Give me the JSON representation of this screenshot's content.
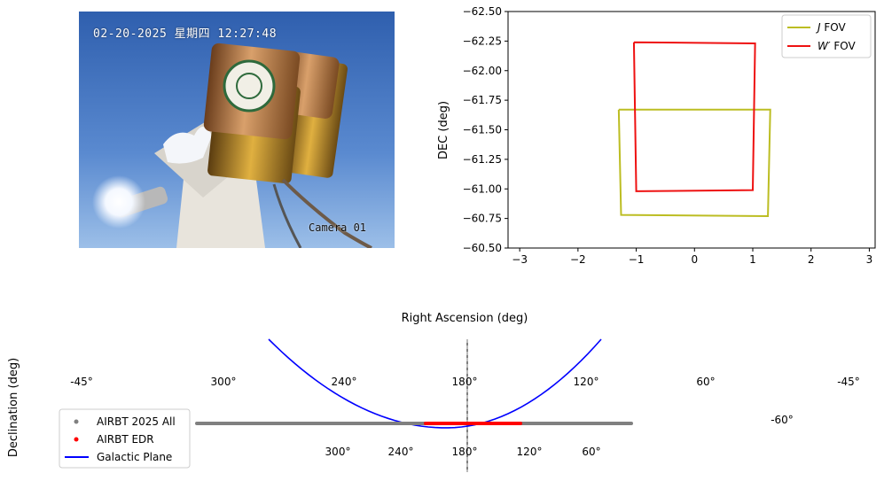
{
  "photo": {
    "timestamp": "02-20-2025 星期四 12:27:48",
    "camera_label": "Camera 01"
  },
  "chart_data": [
    {
      "type": "line",
      "ylabel": "DEC (deg)",
      "xlim": [
        -3.2,
        3.1
      ],
      "ylim": [
        -62.5,
        -60.5
      ],
      "y_inverted": true,
      "xticks": [
        -3,
        -2,
        -1,
        0,
        1,
        2,
        3
      ],
      "xtick_labels": [
        "−3",
        "−2",
        "−1",
        "0",
        "1",
        "2",
        "3"
      ],
      "yticks": [
        -62.5,
        -62.25,
        -62.0,
        -61.75,
        -61.5,
        -61.25,
        -61.0,
        -60.75,
        -60.5
      ],
      "ytick_labels": [
        "−62.50",
        "−62.25",
        "−62.00",
        "−61.75",
        "−61.50",
        "−61.25",
        "−61.00",
        "−60.75",
        "−60.50"
      ],
      "legend_position": "top-right",
      "series": [
        {
          "name": "J FOV",
          "legend_italic": "J",
          "legend_rest": " FOV",
          "color": "#bcbd22",
          "x": [
            -1.3,
            1.3,
            1.26,
            -1.26,
            -1.3
          ],
          "y": [
            -61.67,
            -61.67,
            -60.77,
            -60.78,
            -61.67
          ]
        },
        {
          "name": "W′ FOV",
          "legend_italic": "W′",
          "legend_rest": " FOV",
          "color": "#ee1111",
          "x": [
            -1.04,
            1.04,
            1.0,
            -1.0,
            -1.04
          ],
          "y": [
            -62.24,
            -62.23,
            -60.99,
            -60.98,
            -62.24
          ]
        }
      ]
    },
    {
      "type": "scatter",
      "projection": "mollweide",
      "xlabel": "Right Ascension (deg)",
      "ylabel": "Declination (deg)",
      "ra_tick_labels_upper": [
        "300°",
        "240°",
        "180°",
        "120°",
        "60°"
      ],
      "ra_tick_labels_lower": [
        "300°",
        "240°",
        "180°",
        "120°",
        "60°"
      ],
      "dec_tick_labels": [
        "-45°",
        "-45°",
        "-60°"
      ],
      "legend_position": "lower-left",
      "series": [
        {
          "name": "AIRBT 2025 All",
          "color": "#808080",
          "ra_range": [
            80,
            310
          ],
          "dec": -62.3
        },
        {
          "name": "AIRBT EDR",
          "color": "#ff0000",
          "ra_range": [
            155,
            208
          ],
          "dec": -62.3
        },
        {
          "name": "Galactic Plane",
          "color": "#0000ff",
          "marker": "line"
        }
      ]
    }
  ]
}
